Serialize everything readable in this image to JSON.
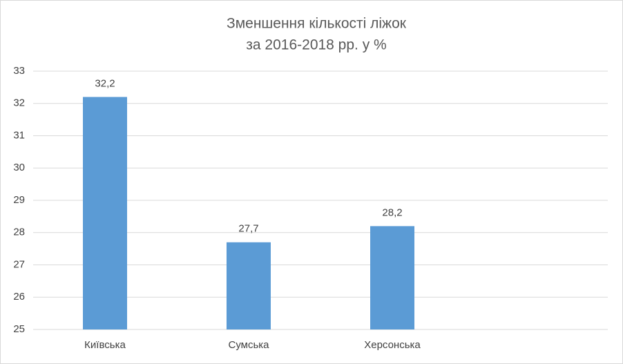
{
  "chart_data": {
    "type": "bar",
    "title": [
      "Зменшення кількості ліжок",
      "за 2016-2018 рр. у %"
    ],
    "categories": [
      "Київська",
      "Сумська",
      "Херсонська",
      null
    ],
    "values": [
      32.2,
      27.7,
      28.2,
      null
    ],
    "value_labels": [
      "32,2",
      "27,7",
      "28,2",
      null
    ],
    "color": "#5b9bd5",
    "ylim": [
      25,
      33
    ],
    "yticks": [
      25,
      26,
      27,
      28,
      29,
      30,
      31,
      32,
      33
    ],
    "grid": true
  }
}
